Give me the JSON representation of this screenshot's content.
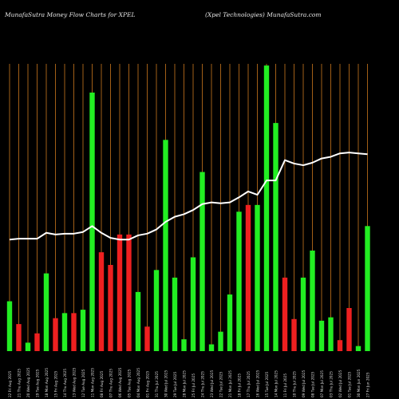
{
  "header": {
    "left": "MunafaSutra  Money Flow  Charts for XPEL",
    "right": "(Xpel Technologies) MunafaSutra.com"
  },
  "colors": {
    "background": "#000000",
    "gridline": "#b46a1a",
    "up_bar": "#22ee22",
    "down_bar": "#ee2020",
    "price_line": "#ffffff",
    "label_text": "#dddddd"
  },
  "chart_data": {
    "type": "bar",
    "title": "MunafaSutra  Money Flow  Charts for XPEL",
    "categories": [
      "22 Fri Aug 2025",
      "21 Thu Aug 2025",
      "20 Wed Aug 2025",
      "19 Tue Aug 2025",
      "18 Mon Aug 2025",
      "15 Fri Aug 2025",
      "14 Thu Aug 2025",
      "13 Wed Aug 2025",
      "12 Tue Aug 2025",
      "11 Mon Aug 2025",
      "08 Fri Aug 2025",
      "07 Thu Aug 2025",
      "06 Wed Aug 2025",
      "05 Tue Aug 2025",
      "04 Mon Aug 2025",
      "01 Fri Aug 2025",
      "31 Thu Jul 2025",
      "30 Wed Jul 2025",
      "29 Tue Jul 2025",
      "28 Mon Jul 2025",
      "25 Fri Jul 2025",
      "24 Thu Jul 2025",
      "23 Wed Jul 2025",
      "22 Tue Jul 2025",
      "21 Mon Jul 2025",
      "18 Fri Jul 2025",
      "17 Thu Jul 2025",
      "16 Wed Jul 2025",
      "15 Tue Jul 2025",
      "14 Mon Jul 2025",
      "11 Fri Jul 2025",
      "10 Thu Jul 2025",
      "09 Wed Jul 2025",
      "08 Tue Jul 2025",
      "07 Mon Jul 2025",
      "03 Thu Jul 2025",
      "02 Wed Jul 2025",
      "01 Tue Jul 2025",
      "30 Mon Jun 2025",
      "27 Fri Jun 2025"
    ],
    "bars": [
      {
        "value": 59,
        "dir": "up"
      },
      {
        "value": 32,
        "dir": "down"
      },
      {
        "value": 10,
        "dir": "up"
      },
      {
        "value": 21,
        "dir": "down"
      },
      {
        "value": 92,
        "dir": "up"
      },
      {
        "value": 39,
        "dir": "down"
      },
      {
        "value": 45,
        "dir": "up"
      },
      {
        "value": 45,
        "dir": "down"
      },
      {
        "value": 49,
        "dir": "up"
      },
      {
        "value": 306,
        "dir": "up"
      },
      {
        "value": 117,
        "dir": "down"
      },
      {
        "value": 102,
        "dir": "down"
      },
      {
        "value": 138,
        "dir": "down"
      },
      {
        "value": 138,
        "dir": "down"
      },
      {
        "value": 70,
        "dir": "up"
      },
      {
        "value": 29,
        "dir": "down"
      },
      {
        "value": 96,
        "dir": "up"
      },
      {
        "value": 250,
        "dir": "up"
      },
      {
        "value": 87,
        "dir": "up"
      },
      {
        "value": 14,
        "dir": "up"
      },
      {
        "value": 111,
        "dir": "up"
      },
      {
        "value": 212,
        "dir": "up"
      },
      {
        "value": 8,
        "dir": "up"
      },
      {
        "value": 23,
        "dir": "up"
      },
      {
        "value": 67,
        "dir": "up"
      },
      {
        "value": 165,
        "dir": "up"
      },
      {
        "value": 173,
        "dir": "down"
      },
      {
        "value": 173,
        "dir": "up"
      },
      {
        "value": 338,
        "dir": "up"
      },
      {
        "value": 270,
        "dir": "up"
      },
      {
        "value": 87,
        "dir": "down"
      },
      {
        "value": 38,
        "dir": "down"
      },
      {
        "value": 87,
        "dir": "up"
      },
      {
        "value": 119,
        "dir": "up"
      },
      {
        "value": 36,
        "dir": "up"
      },
      {
        "value": 40,
        "dir": "up"
      },
      {
        "value": 13,
        "dir": "down"
      },
      {
        "value": 51,
        "dir": "down"
      },
      {
        "value": 6,
        "dir": "up"
      },
      {
        "value": 148,
        "dir": "up"
      }
    ],
    "price_line": [
      132,
      133,
      133,
      133,
      140,
      138,
      139,
      139,
      141,
      148,
      140,
      134,
      132,
      132,
      137,
      139,
      144,
      153,
      159,
      162,
      167,
      174,
      176,
      175,
      176,
      182,
      189,
      185,
      202,
      202,
      226,
      222,
      220,
      223,
      228,
      230,
      234,
      235,
      234,
      233
    ],
    "ylim": [
      0,
      340
    ],
    "price_ylim": [
      0,
      340
    ],
    "grid": true,
    "legend": "none"
  }
}
